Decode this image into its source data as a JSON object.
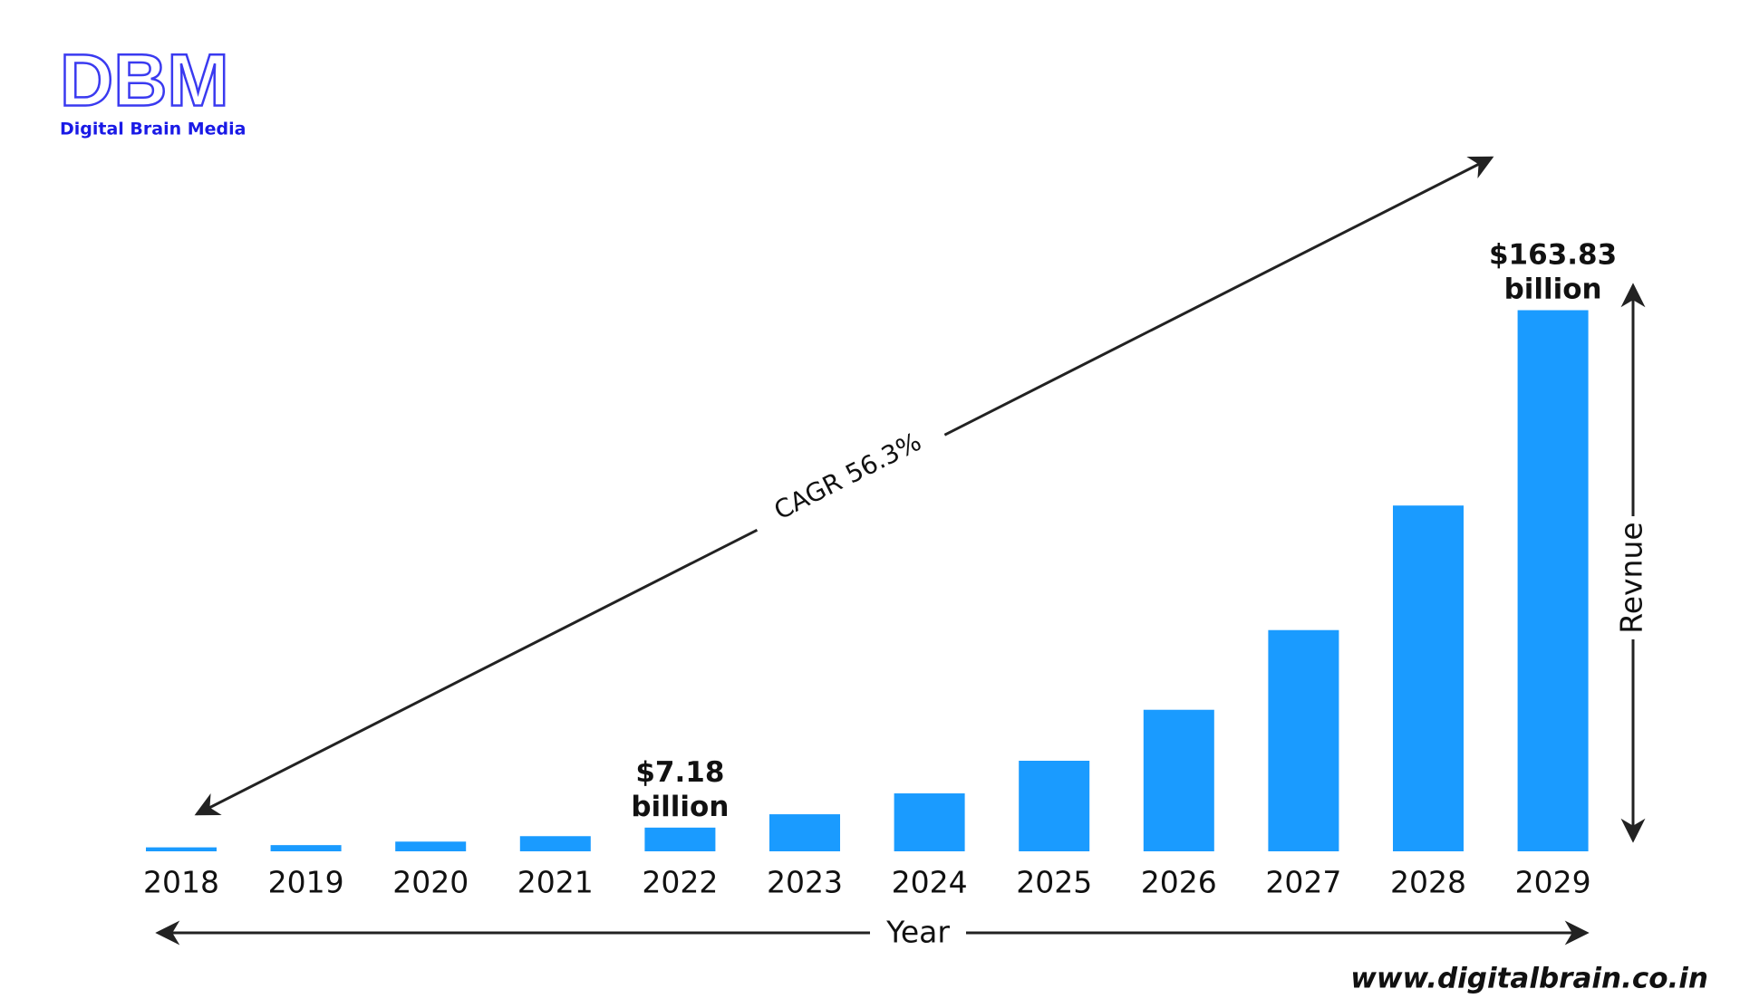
{
  "header": {
    "logo": "DBM",
    "logo_subtitle": "Digital Brain Media"
  },
  "chart_data": {
    "type": "bar",
    "categories": [
      "2018",
      "2019",
      "2020",
      "2021",
      "2022",
      "2023",
      "2024",
      "2025",
      "2026",
      "2027",
      "2028",
      "2029"
    ],
    "values": [
      1.2,
      1.88,
      2.94,
      4.59,
      7.18,
      11.22,
      17.54,
      27.42,
      42.85,
      66.98,
      104.69,
      163.83
    ],
    "value_labels": [
      null,
      null,
      null,
      null,
      "$7.18 billion",
      null,
      null,
      null,
      null,
      null,
      null,
      "$163.83 billion"
    ],
    "color": "#1a9bff",
    "ylim": [
      0,
      170
    ],
    "x_label": "Year",
    "y_label": "Revnue",
    "annotation": "CAGR 56.3%"
  },
  "footer": {
    "url": "www.digitalbrain.co.in"
  }
}
